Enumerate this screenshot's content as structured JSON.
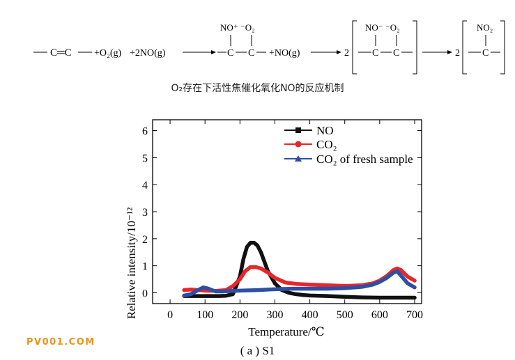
{
  "mechanism": {
    "reactant_bond": "C═C",
    "o2_term": "+O₂(g)",
    "no_term": "+2NO(g)",
    "no_term2": "+NO(g)",
    "coef": "2",
    "no_plus_o_minus": "NO⁺ ⁻O₂",
    "no_minus_o_minus": "NO⁻ ⁻O₂",
    "product_group": "NO₂",
    "carbon": "C",
    "caption": "O₂存在下活性焦催化氧化NO的反应机制"
  },
  "chart_data": {
    "type": "line",
    "xlabel": "Temperature/℃",
    "ylabel": "Relative intensity/10⁻¹²",
    "xlim": [
      -50,
      720
    ],
    "ylim": [
      -0.4,
      6.4
    ],
    "xticks": [
      0,
      100,
      200,
      300,
      400,
      500,
      600,
      700
    ],
    "yticks": [
      0,
      1,
      2,
      3,
      4,
      5,
      6
    ],
    "grid": false,
    "legend_position": "top-right",
    "series": [
      {
        "name": "NO",
        "color": "#111111",
        "marker": "square",
        "x": [
          40,
          60,
          80,
          100,
          120,
          140,
          160,
          180,
          200,
          210,
          220,
          230,
          240,
          250,
          260,
          270,
          280,
          300,
          320,
          340,
          360,
          380,
          400,
          450,
          500,
          550,
          600,
          650,
          700
        ],
        "y": [
          -0.12,
          -0.12,
          -0.12,
          -0.12,
          -0.12,
          -0.12,
          -0.11,
          -0.05,
          0.6,
          1.25,
          1.7,
          1.85,
          1.85,
          1.75,
          1.5,
          1.15,
          0.8,
          0.35,
          0.1,
          0.0,
          -0.05,
          -0.08,
          -0.1,
          -0.12,
          -0.15,
          -0.17,
          -0.18,
          -0.18,
          -0.18
        ]
      },
      {
        "name": "CO₂",
        "color": "#e8262a",
        "marker": "circle",
        "x": [
          40,
          60,
          80,
          100,
          130,
          160,
          180,
          200,
          215,
          230,
          245,
          260,
          280,
          300,
          330,
          360,
          400,
          450,
          500,
          550,
          580,
          600,
          620,
          640,
          650,
          660,
          680,
          700
        ],
        "y": [
          0.1,
          0.12,
          0.1,
          0.08,
          0.07,
          0.1,
          0.25,
          0.5,
          0.8,
          0.95,
          0.95,
          0.9,
          0.75,
          0.55,
          0.38,
          0.33,
          0.3,
          0.28,
          0.25,
          0.28,
          0.35,
          0.45,
          0.62,
          0.85,
          0.9,
          0.85,
          0.6,
          0.45
        ]
      },
      {
        "name": "CO₂ of fresh sample",
        "color": "#2d4fa3",
        "marker": "triangle",
        "x": [
          40,
          60,
          80,
          95,
          110,
          130,
          150,
          180,
          200,
          250,
          300,
          350,
          400,
          450,
          500,
          550,
          580,
          600,
          620,
          640,
          650,
          660,
          680,
          700
        ],
        "y": [
          -0.1,
          -0.05,
          0.1,
          0.2,
          0.15,
          0.05,
          0.05,
          0.07,
          0.08,
          0.1,
          0.13,
          0.15,
          0.15,
          0.15,
          0.17,
          0.22,
          0.3,
          0.4,
          0.55,
          0.75,
          0.8,
          0.65,
          0.35,
          0.2
        ]
      }
    ]
  },
  "sub_caption": "( a ) S1",
  "watermark": "PV001.COM"
}
